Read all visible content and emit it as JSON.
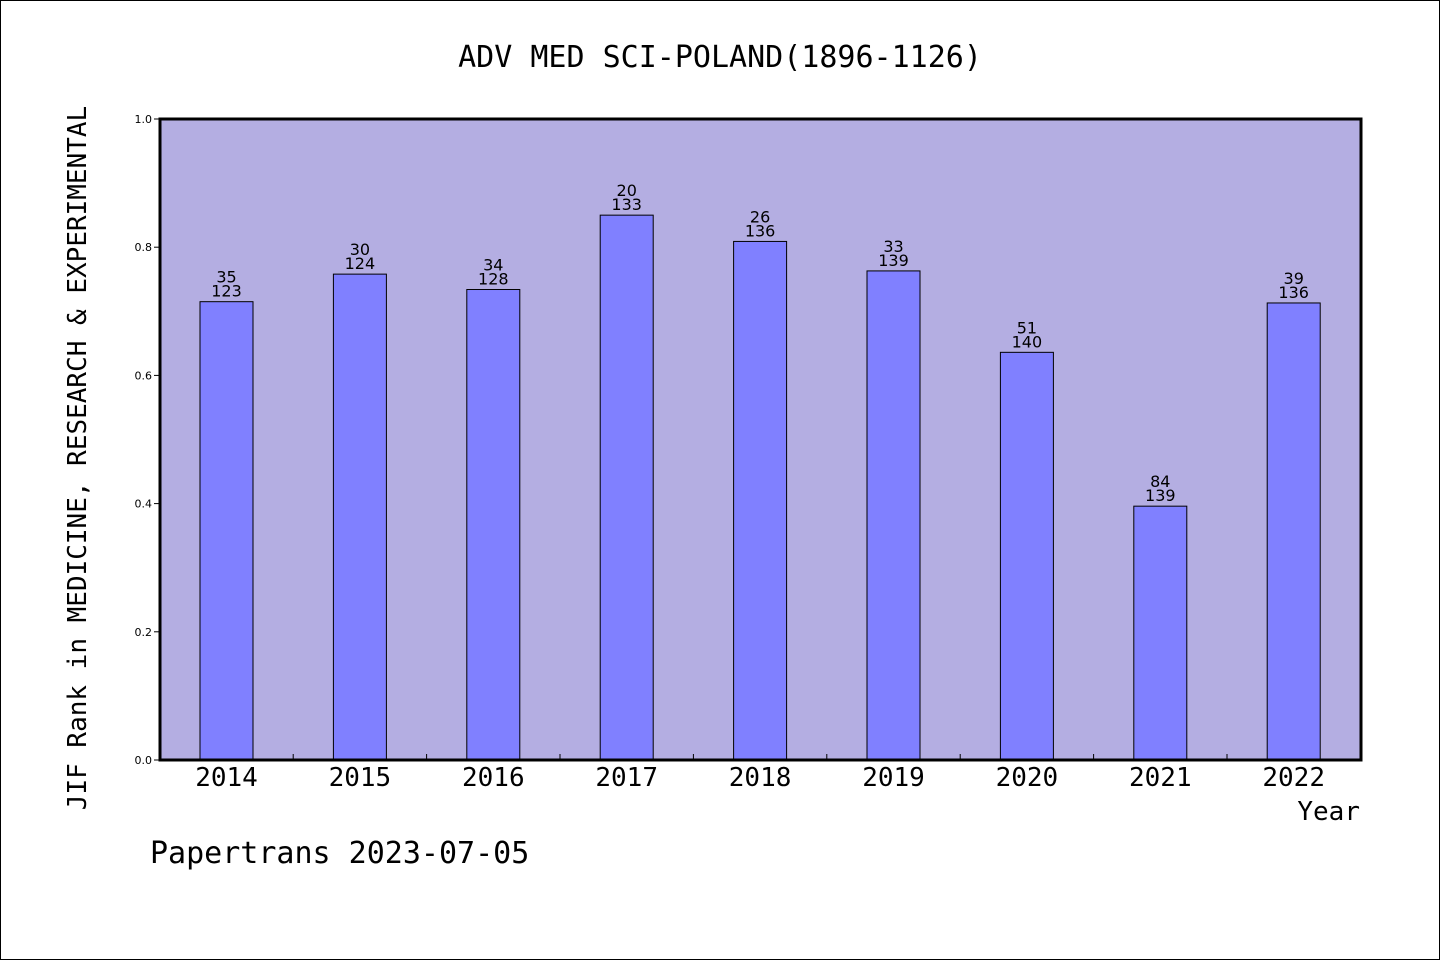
{
  "chart_data": {
    "type": "bar",
    "title": "ADV MED SCI-POLAND(1896-1126)",
    "xlabel": "Year",
    "ylabel": "JIF Rank in MEDICINE, RESEARCH & EXPERIMENTAL",
    "ylim": [
      0.0,
      1.0
    ],
    "yticks": [
      "0.0",
      "0.2",
      "0.4",
      "0.6",
      "0.8",
      "1.0"
    ],
    "ytick_values": [
      0.0,
      0.2,
      0.4,
      0.6,
      0.8,
      1.0
    ],
    "categories": [
      "2014",
      "2015",
      "2016",
      "2017",
      "2018",
      "2019",
      "2020",
      "2021",
      "2022"
    ],
    "values": [
      0.715,
      0.758,
      0.734,
      0.85,
      0.809,
      0.763,
      0.636,
      0.396,
      0.713
    ],
    "ranks": [
      "35",
      "30",
      "34",
      "20",
      "26",
      "33",
      "51",
      "84",
      "39"
    ],
    "totals": [
      "123",
      "124",
      "128",
      "133",
      "136",
      "139",
      "140",
      "139",
      "136"
    ],
    "grid": false,
    "legend": "none"
  },
  "footer": "Papertrans 2023-07-05",
  "colors": {
    "plot_background": "#b4aee2",
    "bar_fill": "#8080ff",
    "bar_stroke": "#000000",
    "text": "#000000"
  }
}
